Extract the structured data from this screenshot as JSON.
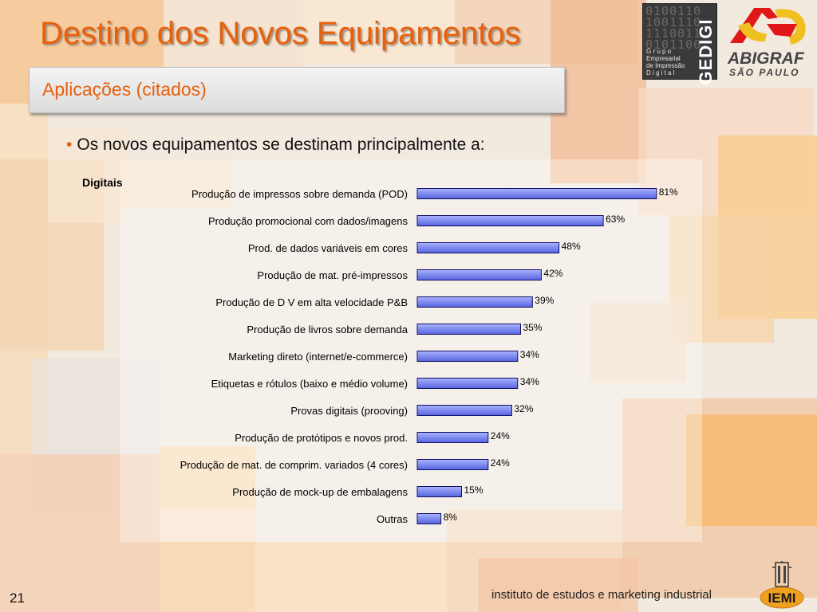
{
  "header": {
    "title": "Destino dos Novos Equipamentos",
    "subtitle": "Aplicações (citados)"
  },
  "intro": {
    "bullet": "•",
    "text": "Os novos equipamentos se destinam principalmente a:"
  },
  "logos": {
    "gedigi_bits": [
      "0100110",
      "1001110",
      "1110011",
      "0101100"
    ],
    "gedigi_word": "GEDIGI",
    "gedigi_subtitle": [
      "G r u p o",
      "Empresarial",
      "de Impressão",
      "D i g i t a l"
    ],
    "abigraf_name": "ABIGRAF",
    "abigraf_city": "SÃO PAULO",
    "iemi_text": "IEMI"
  },
  "footer": {
    "page_number": "21",
    "institute": "instituto de estudos e marketing industrial"
  },
  "colors": {
    "accent": "#e8600c",
    "bar_fill_top": "#aab4ff",
    "bar_fill_bottom": "#5563df",
    "bar_stroke": "#101060"
  },
  "chart_data": {
    "type": "bar",
    "orientation": "horizontal",
    "group_label": "Digitais",
    "categories": [
      "Produção de impressos sobre demanda (POD)",
      "Produção promocional com dados/imagens",
      "Prod. de dados variáveis em cores",
      "Produção de mat. pré-impressos",
      "Produção de D V em alta velocidade P&B",
      "Produção de livros sobre demanda",
      "Marketing direto (internet/e-commerce)",
      "Etiquetas e rótulos (baixo e médio volume)",
      "Provas digitais (prooving)",
      "Produção de protótipos e novos prod.",
      "Produção de mat. de comprim. variados (4 cores)",
      "Produção de mock-up de embalagens",
      "Outras"
    ],
    "values": [
      81,
      63,
      48,
      42,
      39,
      35,
      34,
      34,
      32,
      24,
      24,
      15,
      8
    ],
    "value_labels": [
      "81%",
      "63%",
      "48%",
      "42%",
      "39%",
      "35%",
      "34%",
      "34%",
      "32%",
      "24%",
      "24%",
      "15%",
      "8%"
    ],
    "unit": "%",
    "xlim": [
      0,
      100
    ],
    "grid": false,
    "legend": "none"
  }
}
